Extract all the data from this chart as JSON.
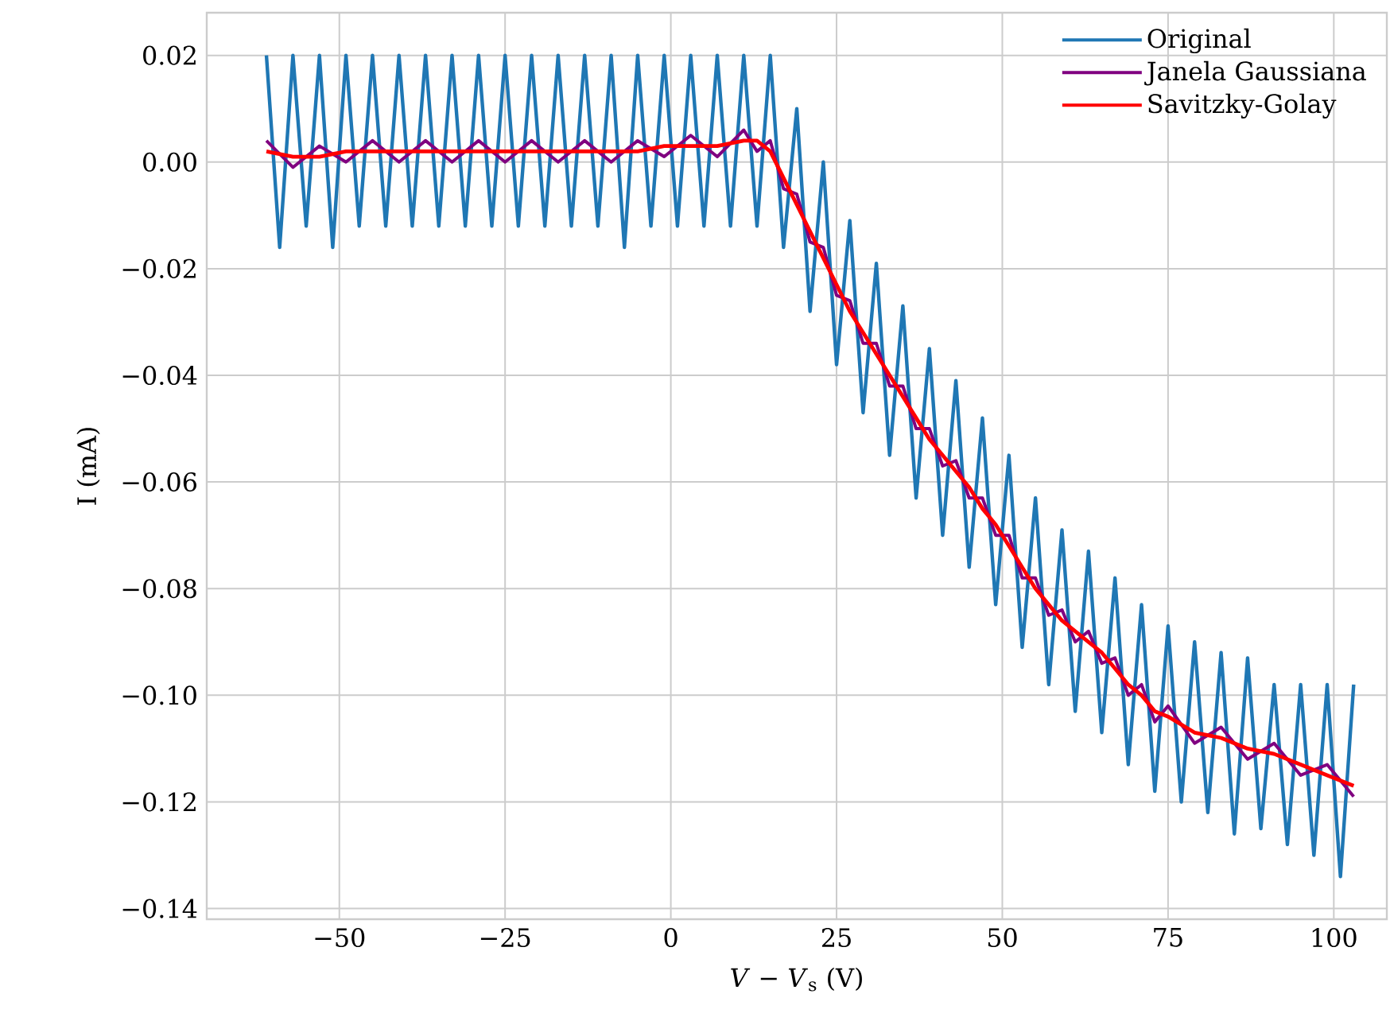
{
  "chart_data": {
    "type": "line",
    "xlabel": "*V* − *V*$_{s}$ (V)",
    "ylabel": "I (mA)",
    "xlim": [
      -70,
      108
    ],
    "ylim": [
      -0.142,
      0.028
    ],
    "xticks": [
      {
        "value": -50,
        "label": "−50"
      },
      {
        "value": -25,
        "label": "−25"
      },
      0,
      25,
      50,
      75,
      100
    ],
    "yticks": [
      {
        "value": -0.14,
        "label": "−0.14"
      },
      {
        "value": -0.12,
        "label": "−0.12"
      },
      {
        "value": -0.1,
        "label": "−0.10"
      },
      {
        "value": -0.08,
        "label": "−0.08"
      },
      {
        "value": -0.06,
        "label": "−0.06"
      },
      {
        "value": -0.04,
        "label": "−0.04"
      },
      {
        "value": -0.02,
        "label": "−0.02"
      },
      {
        "value": 0,
        "label": "0.00"
      },
      0.02
    ],
    "grid": true,
    "legend": "top right",
    "marker": "none",
    "line_style": "solid",
    "series": [
      {
        "name": "Original",
        "color": "#1f77b4",
        "x": [
          -61,
          -59,
          -57,
          -55,
          -53,
          -51,
          -49,
          -47,
          -45,
          -43,
          -41,
          -39,
          -37,
          -35,
          -33,
          -31,
          -29,
          -27,
          -25,
          -23,
          -21,
          -19,
          -17,
          -15,
          -13,
          -11,
          -9,
          -7,
          -5,
          -3,
          -1,
          1,
          3,
          5,
          7,
          9,
          11,
          13,
          15,
          17,
          19,
          21,
          23,
          25,
          27,
          29,
          31,
          33,
          35,
          37,
          39,
          41,
          43,
          45,
          47,
          49,
          51,
          53,
          55,
          57,
          59,
          61,
          63,
          65,
          67,
          69,
          71,
          73,
          75,
          77,
          79,
          81,
          83,
          85,
          87,
          89,
          91,
          93,
          95,
          97,
          99,
          101,
          103
        ],
        "values": [
          0.02,
          -0.016,
          0.02,
          -0.012,
          0.02,
          -0.016,
          0.02,
          -0.012,
          0.02,
          -0.012,
          0.02,
          -0.012,
          0.02,
          -0.012,
          0.02,
          -0.012,
          0.02,
          -0.012,
          0.02,
          -0.012,
          0.02,
          -0.012,
          0.02,
          -0.012,
          0.02,
          -0.012,
          0.02,
          -0.016,
          0.02,
          -0.012,
          0.02,
          -0.012,
          0.02,
          -0.012,
          0.02,
          -0.012,
          0.02,
          -0.012,
          0.02,
          -0.016,
          0.01,
          -0.028,
          0.0,
          -0.038,
          -0.011,
          -0.047,
          -0.019,
          -0.055,
          -0.027,
          -0.063,
          -0.035,
          -0.07,
          -0.041,
          -0.076,
          -0.048,
          -0.083,
          -0.055,
          -0.091,
          -0.063,
          -0.098,
          -0.069,
          -0.103,
          -0.073,
          -0.107,
          -0.078,
          -0.113,
          -0.083,
          -0.118,
          -0.087,
          -0.12,
          -0.09,
          -0.122,
          -0.092,
          -0.126,
          -0.093,
          -0.125,
          -0.098,
          -0.128,
          -0.098,
          -0.13,
          -0.098,
          -0.134,
          -0.098
        ]
      },
      {
        "name": "Janela Gaussiana",
        "color": "#800080",
        "x": [
          -61,
          -57,
          -53,
          -49,
          -45,
          -41,
          -37,
          -33,
          -29,
          -25,
          -21,
          -17,
          -13,
          -9,
          -5,
          -1,
          3,
          7,
          11,
          13,
          15,
          17,
          19,
          21,
          23,
          25,
          27,
          29,
          31,
          33,
          35,
          37,
          39,
          41,
          43,
          45,
          47,
          49,
          51,
          53,
          55,
          57,
          59,
          61,
          63,
          65,
          67,
          69,
          71,
          73,
          75,
          79,
          83,
          87,
          91,
          95,
          99,
          103
        ],
        "values": [
          0.004,
          -0.001,
          0.003,
          0.0,
          0.004,
          0.0,
          0.004,
          0.0,
          0.004,
          0.0,
          0.004,
          0.0,
          0.004,
          0.0,
          0.004,
          0.001,
          0.005,
          0.001,
          0.006,
          0.002,
          0.004,
          -0.005,
          -0.006,
          -0.015,
          -0.016,
          -0.025,
          -0.026,
          -0.034,
          -0.034,
          -0.042,
          -0.042,
          -0.05,
          -0.05,
          -0.057,
          -0.056,
          -0.063,
          -0.063,
          -0.07,
          -0.07,
          -0.078,
          -0.078,
          -0.085,
          -0.084,
          -0.09,
          -0.088,
          -0.094,
          -0.093,
          -0.1,
          -0.098,
          -0.105,
          -0.102,
          -0.109,
          -0.106,
          -0.112,
          -0.109,
          -0.115,
          -0.113,
          -0.119
        ]
      },
      {
        "name": "Savitzky-Golay",
        "color": "#ff0000",
        "x": [
          -61,
          -57,
          -53,
          -49,
          -45,
          -41,
          -37,
          -33,
          -29,
          -25,
          -21,
          -17,
          -13,
          -9,
          -5,
          -1,
          3,
          7,
          11,
          13,
          15,
          17,
          19,
          21,
          23,
          25,
          27,
          29,
          31,
          33,
          35,
          37,
          39,
          41,
          43,
          45,
          47,
          49,
          51,
          53,
          55,
          57,
          59,
          61,
          63,
          65,
          67,
          69,
          71,
          73,
          75,
          79,
          83,
          87,
          91,
          95,
          99,
          103
        ],
        "values": [
          0.002,
          0.001,
          0.001,
          0.002,
          0.002,
          0.002,
          0.002,
          0.002,
          0.002,
          0.002,
          0.002,
          0.002,
          0.002,
          0.002,
          0.002,
          0.003,
          0.003,
          0.003,
          0.004,
          0.004,
          0.002,
          -0.003,
          -0.008,
          -0.013,
          -0.018,
          -0.023,
          -0.028,
          -0.032,
          -0.036,
          -0.04,
          -0.044,
          -0.048,
          -0.052,
          -0.055,
          -0.058,
          -0.061,
          -0.065,
          -0.068,
          -0.072,
          -0.076,
          -0.08,
          -0.083,
          -0.086,
          -0.088,
          -0.09,
          -0.092,
          -0.095,
          -0.098,
          -0.1,
          -0.103,
          -0.104,
          -0.107,
          -0.108,
          -0.11,
          -0.111,
          -0.113,
          -0.115,
          -0.117
        ]
      }
    ]
  }
}
